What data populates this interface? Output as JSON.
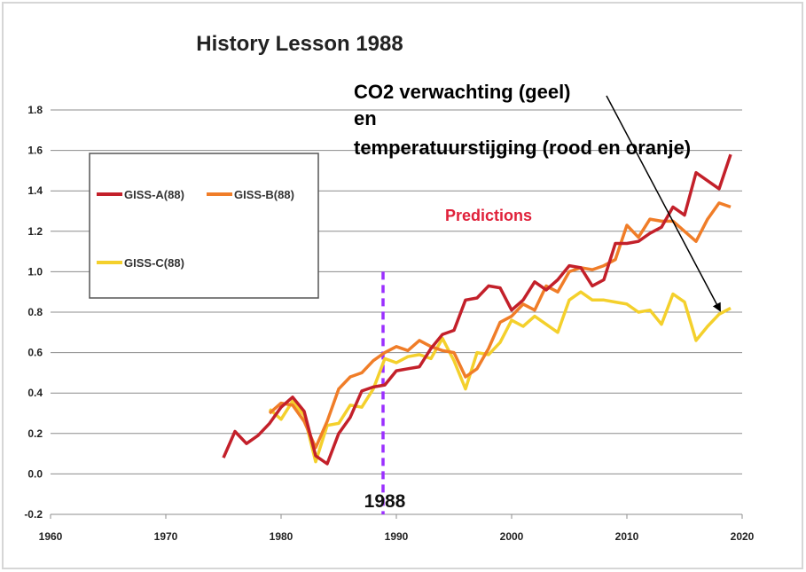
{
  "chart_data": {
    "type": "line",
    "title": "History Lesson 1988",
    "xlabel": "",
    "ylabel": "",
    "xlim": [
      1960,
      2020
    ],
    "ylim": [
      -0.2,
      1.8
    ],
    "x_ticks": [
      1960,
      1970,
      1980,
      1990,
      2000,
      2010,
      2020
    ],
    "y_ticks": [
      -0.2,
      0.0,
      0.2,
      0.4,
      0.6,
      0.8,
      1.0,
      1.2,
      1.4,
      1.6,
      1.8
    ],
    "grid": "horizontal",
    "legend_position": "top-left",
    "series": [
      {
        "name": "GISS-A(88)",
        "color": "#c3202a",
        "x": [
          1975,
          1976,
          1977,
          1978,
          1979,
          1980,
          1981,
          1982,
          1983,
          1984,
          1985,
          1986,
          1987,
          1988,
          1989,
          1990,
          1991,
          1992,
          1993,
          1994,
          1995,
          1996,
          1997,
          1998,
          1999,
          2000,
          2001,
          2002,
          2003,
          2004,
          2005,
          2006,
          2007,
          2008,
          2009,
          2010,
          2011,
          2012,
          2013,
          2014,
          2015,
          2016,
          2017,
          2018,
          2019
        ],
        "values": [
          0.08,
          0.21,
          0.15,
          0.19,
          0.25,
          0.33,
          0.38,
          0.31,
          0.09,
          0.05,
          0.2,
          0.28,
          0.41,
          0.43,
          0.44,
          0.51,
          0.52,
          0.53,
          0.62,
          0.69,
          0.71,
          0.86,
          0.87,
          0.93,
          0.92,
          0.81,
          0.86,
          0.95,
          0.91,
          0.96,
          1.03,
          1.02,
          0.93,
          0.96,
          1.14,
          1.14,
          1.15,
          1.19,
          1.22,
          1.32,
          1.28,
          1.49,
          1.45,
          1.41,
          1.58
        ]
      },
      {
        "name": "GISS-B(88)",
        "color": "#f07d28",
        "x": [
          1979,
          1980,
          1981,
          1982,
          1983,
          1984,
          1985,
          1986,
          1987,
          1988,
          1989,
          1990,
          1991,
          1992,
          1993,
          1994,
          1995,
          1996,
          1997,
          1998,
          1999,
          2000,
          2001,
          2002,
          2003,
          2004,
          2005,
          2006,
          2007,
          2008,
          2009,
          2010,
          2011,
          2012,
          2013,
          2014,
          2015,
          2016,
          2017,
          2018,
          2019
        ],
        "values": [
          0.3,
          0.35,
          0.34,
          0.26,
          0.13,
          0.26,
          0.42,
          0.48,
          0.5,
          0.56,
          0.6,
          0.63,
          0.61,
          0.66,
          0.63,
          0.61,
          0.6,
          0.48,
          0.52,
          0.62,
          0.75,
          0.78,
          0.84,
          0.81,
          0.93,
          0.9,
          1.0,
          1.02,
          1.01,
          1.03,
          1.06,
          1.23,
          1.17,
          1.26,
          1.25,
          1.25,
          1.2,
          1.15,
          1.26,
          1.34,
          1.32
        ]
      },
      {
        "name": "GISS-C(88)",
        "color": "#f4d02c",
        "x": [
          1979,
          1980,
          1981,
          1982,
          1983,
          1984,
          1985,
          1986,
          1987,
          1988,
          1989,
          1990,
          1991,
          1992,
          1993,
          1994,
          1995,
          1996,
          1997,
          1998,
          1999,
          2000,
          2001,
          2002,
          2003,
          2004,
          2005,
          2006,
          2007,
          2008,
          2009,
          2010,
          2011,
          2012,
          2013,
          2014,
          2015,
          2016,
          2017,
          2018,
          2019
        ],
        "values": [
          0.32,
          0.27,
          0.36,
          0.29,
          0.06,
          0.24,
          0.25,
          0.34,
          0.33,
          0.42,
          0.57,
          0.55,
          0.58,
          0.59,
          0.57,
          0.67,
          0.56,
          0.42,
          0.6,
          0.59,
          0.65,
          0.76,
          0.73,
          0.78,
          0.74,
          0.7,
          0.86,
          0.9,
          0.86,
          0.86,
          0.85,
          0.84,
          0.8,
          0.81,
          0.74,
          0.89,
          0.85,
          0.66,
          0.73,
          0.79,
          0.82
        ]
      }
    ],
    "annotations": {
      "predictions_label": "Predictions",
      "vertical_line_year": 1989,
      "vertical_line_label": "1988",
      "comment_lines": [
        "CO2 verwachting (geel)",
        "en",
        "temperatuurstijging (rood en oranje)"
      ]
    }
  },
  "colors": {
    "giss_a": "#c3202a",
    "giss_b": "#f07d28",
    "giss_c": "#f4d02c",
    "predictions": "#e0213a",
    "vertical_line": "#9b30ff",
    "grid": "#8c8c8c"
  }
}
